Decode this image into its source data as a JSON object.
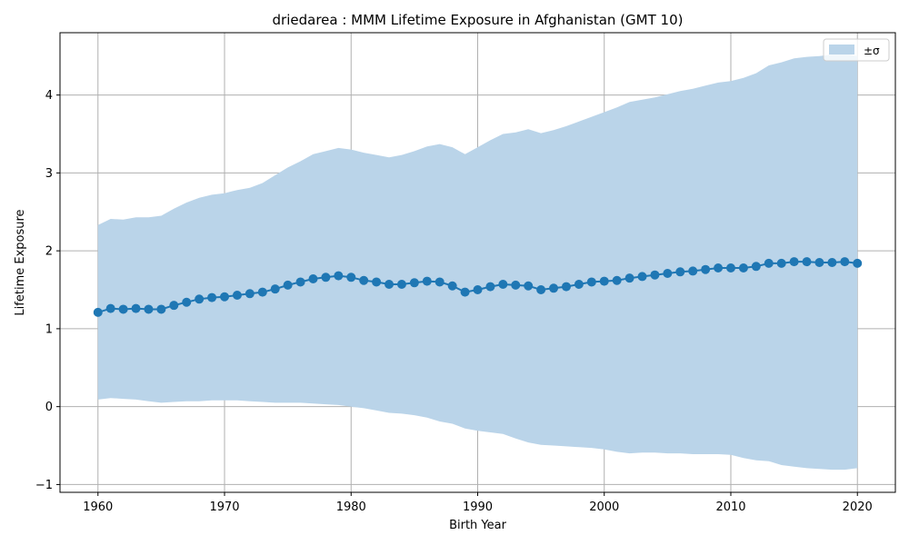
{
  "chart_data": {
    "type": "line",
    "title": "driedarea : MMM Lifetime Exposure in Afghanistan (GMT 10)",
    "xlabel": "Birth Year",
    "ylabel": "Lifetime Exposure",
    "xlim": [
      1957,
      2023
    ],
    "ylim": [
      -1.1,
      4.8
    ],
    "xticks": [
      1960,
      1970,
      1980,
      1990,
      2000,
      2010,
      2020
    ],
    "yticks": [
      -1,
      0,
      1,
      2,
      3,
      4
    ],
    "ytick_labels": [
      "−1",
      "0",
      "1",
      "2",
      "3",
      "4"
    ],
    "grid": true,
    "legend_position": "top-right",
    "legend": [
      {
        "label": "±σ",
        "color": "#bad4e9"
      }
    ],
    "colors": {
      "line": "#1f77b4",
      "band": "#bad4e9",
      "grid": "#b0b0b0"
    },
    "x": [
      1960,
      1961,
      1962,
      1963,
      1964,
      1965,
      1966,
      1967,
      1968,
      1969,
      1970,
      1971,
      1972,
      1973,
      1974,
      1975,
      1976,
      1977,
      1978,
      1979,
      1980,
      1981,
      1982,
      1983,
      1984,
      1985,
      1986,
      1987,
      1988,
      1989,
      1990,
      1991,
      1992,
      1993,
      1994,
      1995,
      1996,
      1997,
      1998,
      1999,
      2000,
      2001,
      2002,
      2003,
      2004,
      2005,
      2006,
      2007,
      2008,
      2009,
      2010,
      2011,
      2012,
      2013,
      2014,
      2015,
      2016,
      2017,
      2018,
      2019,
      2020
    ],
    "series": [
      {
        "type": "line",
        "values": [
          1.21,
          1.26,
          1.25,
          1.26,
          1.25,
          1.25,
          1.3,
          1.34,
          1.38,
          1.4,
          1.41,
          1.43,
          1.45,
          1.47,
          1.51,
          1.56,
          1.6,
          1.64,
          1.66,
          1.68,
          1.66,
          1.62,
          1.6,
          1.57,
          1.57,
          1.59,
          1.61,
          1.6,
          1.55,
          1.47,
          1.5,
          1.54,
          1.57,
          1.56,
          1.55,
          1.5,
          1.52,
          1.54,
          1.57,
          1.6,
          1.61,
          1.62,
          1.65,
          1.67,
          1.69,
          1.71,
          1.73,
          1.74,
          1.76,
          1.78,
          1.78,
          1.78,
          1.8,
          1.84,
          1.84,
          1.86,
          1.86,
          1.85,
          1.85,
          1.86,
          1.84
        ]
      },
      {
        "type": "band",
        "name": "±σ",
        "upper": [
          2.33,
          2.41,
          2.4,
          2.43,
          2.43,
          2.45,
          2.54,
          2.62,
          2.68,
          2.72,
          2.74,
          2.78,
          2.81,
          2.87,
          2.97,
          3.07,
          3.15,
          3.24,
          3.28,
          3.32,
          3.3,
          3.26,
          3.23,
          3.2,
          3.23,
          3.28,
          3.34,
          3.37,
          3.33,
          3.24,
          3.33,
          3.42,
          3.5,
          3.52,
          3.56,
          3.51,
          3.55,
          3.6,
          3.66,
          3.72,
          3.78,
          3.84,
          3.91,
          3.94,
          3.97,
          4.01,
          4.05,
          4.08,
          4.12,
          4.16,
          4.18,
          4.22,
          4.28,
          4.38,
          4.42,
          4.47,
          4.49,
          4.5,
          4.52,
          4.53,
          4.5
        ],
        "lower": [
          0.09,
          0.11,
          0.1,
          0.09,
          0.07,
          0.05,
          0.06,
          0.07,
          0.07,
          0.08,
          0.08,
          0.08,
          0.07,
          0.06,
          0.05,
          0.05,
          0.05,
          0.04,
          0.03,
          0.02,
          0.0,
          -0.02,
          -0.05,
          -0.08,
          -0.09,
          -0.11,
          -0.14,
          -0.19,
          -0.22,
          -0.28,
          -0.31,
          -0.33,
          -0.35,
          -0.41,
          -0.46,
          -0.49,
          -0.5,
          -0.51,
          -0.52,
          -0.53,
          -0.55,
          -0.58,
          -0.6,
          -0.59,
          -0.59,
          -0.6,
          -0.6,
          -0.61,
          -0.61,
          -0.61,
          -0.62,
          -0.66,
          -0.69,
          -0.7,
          -0.75,
          -0.77,
          -0.79,
          -0.8,
          -0.81,
          -0.81,
          -0.79
        ]
      }
    ]
  }
}
